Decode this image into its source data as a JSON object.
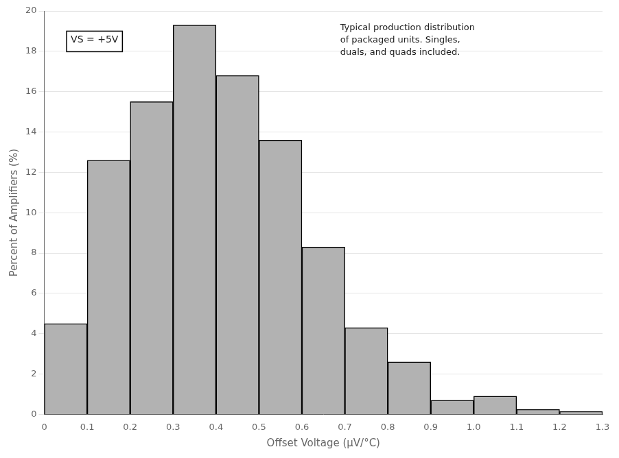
{
  "chart_data": {
    "type": "histogram",
    "bins": [
      0,
      0.1,
      0.2,
      0.3,
      0.4,
      0.5,
      0.6,
      0.7,
      0.8,
      0.9,
      1.0,
      1.1,
      1.2,
      1.3
    ],
    "values": [
      4.5,
      12.6,
      15.5,
      19.3,
      16.8,
      13.6,
      8.3,
      4.3,
      2.6,
      0.7,
      0.9,
      0.25,
      0.15
    ],
    "color": "#b2b2b2",
    "x_label": "Offset Voltage (μV/°C)",
    "y_label": "Percent of Amplifiers (%)",
    "xlim": [
      0,
      1.3
    ],
    "ylim": [
      0,
      20
    ],
    "xticks": [
      0,
      0.1,
      0.2,
      0.3,
      0.4,
      0.5,
      0.6,
      0.7,
      0.8,
      0.9,
      {
        "value": 1.0,
        "label": "1.0"
      },
      1.1,
      1.2,
      1.3
    ],
    "yticks": [
      0,
      2,
      4,
      6,
      8,
      10,
      12,
      14,
      16,
      18,
      20
    ],
    "annotations": [
      "VS = +5V",
      "Typical production distribution\nof packaged units. Singles,\nduals, and quads included."
    ],
    "grid": "y"
  }
}
